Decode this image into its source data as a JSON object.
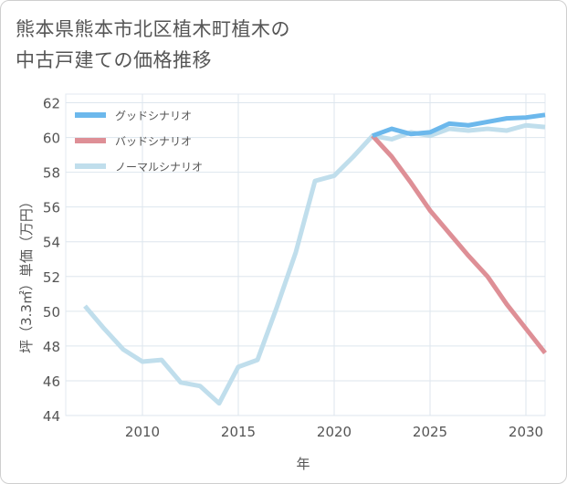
{
  "title": {
    "line1": "熊本県熊本市北区植木町植木の",
    "line2": "中古戸建ての価格推移"
  },
  "chart_data": {
    "type": "line",
    "title": "熊本県熊本市北区植木町植木の中古戸建ての価格推移",
    "xlabel": "年",
    "ylabel": "坪（3.3㎡）単価（万円）",
    "xlim": [
      2006,
      2031
    ],
    "ylim": [
      44,
      62.5
    ],
    "xticks": [
      2010,
      2015,
      2020,
      2025,
      2030
    ],
    "yticks": [
      44,
      46,
      48,
      50,
      52,
      54,
      56,
      58,
      60,
      62
    ],
    "grid": true,
    "legend_position": "top-left",
    "series": [
      {
        "name": "グッドシナリオ",
        "color": "#6cb8ec",
        "x": [
          2022,
          2023,
          2024,
          2025,
          2026,
          2027,
          2028,
          2029,
          2030,
          2031
        ],
        "values": [
          60.1,
          60.5,
          60.2,
          60.3,
          60.8,
          60.7,
          60.9,
          61.1,
          61.15,
          61.3
        ]
      },
      {
        "name": "バッドシナリオ",
        "color": "#de8f96",
        "x": [
          2022,
          2023,
          2024,
          2025,
          2026,
          2027,
          2028,
          2029,
          2030,
          2031
        ],
        "values": [
          60.1,
          58.9,
          57.4,
          55.8,
          54.5,
          53.2,
          52.0,
          50.4,
          49.0,
          47.6
        ]
      },
      {
        "name": "ノーマルシナリオ",
        "color": "#c0deec",
        "x": [
          2007,
          2008,
          2009,
          2010,
          2011,
          2012,
          2013,
          2014,
          2015,
          2016,
          2017,
          2018,
          2019,
          2020,
          2021,
          2022,
          2023,
          2024,
          2025,
          2026,
          2027,
          2028,
          2029,
          2030,
          2031
        ],
        "values": [
          50.3,
          49.0,
          47.8,
          47.1,
          47.2,
          45.9,
          45.7,
          44.7,
          46.8,
          47.2,
          50.2,
          53.4,
          57.5,
          57.8,
          58.9,
          60.1,
          59.9,
          60.3,
          60.1,
          60.5,
          60.4,
          60.5,
          60.4,
          60.7,
          60.6
        ]
      }
    ]
  }
}
